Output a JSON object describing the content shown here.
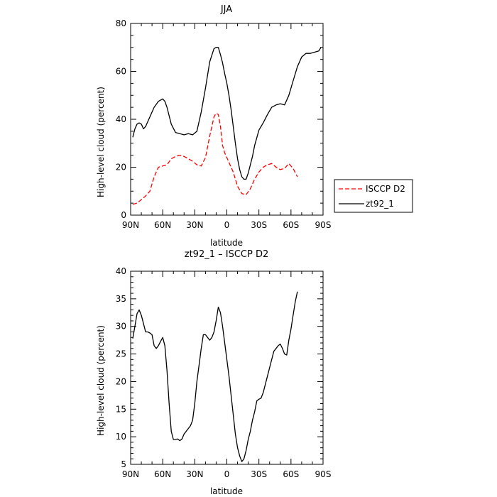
{
  "chart_data": [
    {
      "type": "line",
      "title": "JJA",
      "xlabel": "latitude",
      "ylabel": "High-level cloud (percent)",
      "xlim": [
        -90,
        90
      ],
      "ylim": [
        0,
        80
      ],
      "xticks": [
        {
          "value": -90,
          "label": "90N"
        },
        {
          "value": -60,
          "label": "60N"
        },
        {
          "value": -30,
          "label": "30N"
        },
        {
          "value": 0,
          "label": "0"
        },
        {
          "value": 30,
          "label": "30S"
        },
        {
          "value": 60,
          "label": "60S"
        },
        {
          "value": 90,
          "label": "90S"
        }
      ],
      "yticks": [
        0,
        20,
        40,
        60,
        80
      ],
      "legend_position": "right",
      "series": [
        {
          "name": "ISCCP D2",
          "color": "#ff0000",
          "dash": "dashed",
          "x": [
            -88,
            -84,
            -80,
            -76,
            -72,
            -68,
            -64,
            -60,
            -56,
            -52,
            -48,
            -44,
            -40,
            -36,
            -32,
            -28,
            -24,
            -20,
            -16,
            -12,
            -10,
            -8,
            -6,
            -4,
            -2,
            0,
            2,
            6,
            10,
            14,
            18,
            22,
            26,
            30,
            34,
            38,
            42,
            46,
            50,
            54,
            58,
            62,
            66
          ],
          "y": [
            4.5,
            5,
            6.5,
            8,
            10,
            16,
            20,
            20.5,
            21,
            23.5,
            24.5,
            25,
            24.5,
            23.5,
            22.5,
            21,
            20.5,
            24,
            33,
            41,
            42.5,
            42,
            37,
            29,
            26,
            24,
            22,
            18,
            12,
            9,
            8.5,
            11,
            15,
            18,
            20,
            21,
            21.5,
            20,
            19,
            19.5,
            21.5,
            19.5,
            16
          ]
        },
        {
          "name": "zt92_1",
          "color": "#000000",
          "dash": "solid",
          "x": [
            -88,
            -86,
            -84,
            -82,
            -80,
            -78,
            -76,
            -72,
            -68,
            -64,
            -60,
            -58,
            -56,
            -52,
            -48,
            -44,
            -40,
            -36,
            -32,
            -28,
            -24,
            -20,
            -16,
            -12,
            -10,
            -8,
            -6,
            -4,
            -2,
            0,
            2,
            4,
            6,
            8,
            10,
            12,
            14,
            16,
            18,
            20,
            22,
            24,
            26,
            30,
            34,
            38,
            42,
            46,
            50,
            54,
            58,
            62,
            66,
            70,
            74,
            78,
            82,
            86,
            88
          ],
          "y": [
            32.5,
            36,
            38,
            38.5,
            38,
            36,
            37,
            41,
            45,
            47.5,
            48.5,
            47.5,
            45,
            38,
            34.5,
            34,
            33.5,
            34,
            33.5,
            35,
            43,
            53,
            64,
            69.5,
            70,
            70,
            67,
            63.5,
            59,
            55,
            50,
            44,
            37,
            30,
            23.5,
            19,
            16,
            15,
            15,
            17.5,
            21,
            24.5,
            29,
            35.5,
            38.5,
            42,
            45,
            46,
            46.5,
            46,
            50,
            56,
            62,
            66,
            67.5,
            67.5,
            68,
            68.5,
            70
          ]
        }
      ]
    },
    {
      "type": "line",
      "title": "zt92_1 – ISCCP D2",
      "xlabel": "latitude",
      "ylabel": "High-level cloud (percent)",
      "xlim": [
        -90,
        90
      ],
      "ylim": [
        5,
        40
      ],
      "xticks": [
        {
          "value": -90,
          "label": "90N"
        },
        {
          "value": -60,
          "label": "60N"
        },
        {
          "value": -30,
          "label": "30N"
        },
        {
          "value": 0,
          "label": "0"
        },
        {
          "value": 30,
          "label": "30S"
        },
        {
          "value": 60,
          "label": "60S"
        },
        {
          "value": 90,
          "label": "90S"
        }
      ],
      "yticks": [
        5,
        10,
        15,
        20,
        25,
        30,
        35,
        40
      ],
      "series": [
        {
          "color": "#000000",
          "dash": "solid",
          "x": [
            -88,
            -86,
            -84,
            -82,
            -80,
            -78,
            -76,
            -74,
            -72,
            -70,
            -68,
            -66,
            -64,
            -62,
            -60,
            -58,
            -56,
            -54,
            -52,
            -50,
            -48,
            -46,
            -44,
            -42,
            -40,
            -38,
            -36,
            -34,
            -32,
            -30,
            -28,
            -26,
            -24,
            -22,
            -20,
            -18,
            -16,
            -14,
            -12,
            -10,
            -8,
            -6,
            -4,
            -2,
            0,
            2,
            4,
            6,
            8,
            10,
            12,
            14,
            16,
            18,
            20,
            22,
            24,
            26,
            28,
            30,
            32,
            34,
            36,
            38,
            40,
            42,
            44,
            46,
            48,
            50,
            52,
            54,
            56,
            58,
            60,
            62,
            64,
            66
          ],
          "y": [
            27.8,
            30,
            32.3,
            33,
            32,
            30.5,
            29,
            29,
            28.8,
            28.5,
            26.5,
            26,
            26.5,
            27.3,
            28,
            26.5,
            22,
            16,
            11,
            9.5,
            9.5,
            9.6,
            9.3,
            9.6,
            10.5,
            11,
            11.5,
            12,
            13,
            16,
            20,
            23,
            26,
            28.5,
            28.5,
            28,
            27.5,
            28,
            29,
            31,
            33.5,
            32.5,
            30,
            27,
            24,
            21,
            17.5,
            14,
            10.5,
            8,
            6.5,
            5.5,
            6,
            7.5,
            9.5,
            11,
            13,
            14.5,
            16.5,
            16.8,
            17,
            18,
            19.5,
            21,
            22.5,
            24,
            25.5,
            26,
            26.5,
            26.8,
            26,
            25,
            24.8,
            27.5,
            29.5,
            32,
            34.5,
            36.3
          ]
        }
      ]
    }
  ]
}
